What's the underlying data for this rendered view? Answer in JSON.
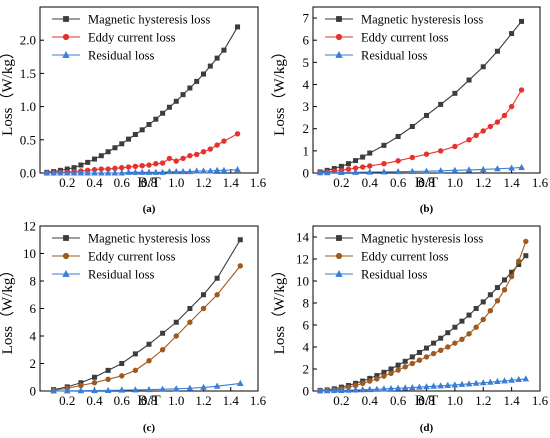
{
  "chart_data": [
    {
      "type": "line",
      "panel_label": "(a)",
      "xlabel": "B/T",
      "ylabel": "Loss（W/kg）",
      "xlim": [
        0,
        1.6
      ],
      "ylim": [
        0,
        2.5
      ],
      "xticks": [
        0.2,
        0.4,
        0.6,
        0.8,
        1.0,
        1.2,
        1.4,
        1.6
      ],
      "xtick_labels": [
        "0.2",
        "0.4",
        "0.6",
        "0.8",
        "1.0",
        "1.2",
        "1.4",
        "1.6"
      ],
      "yticks": [
        0.0,
        0.5,
        1.0,
        1.5,
        2.0
      ],
      "ytick_labels": [
        "0.0",
        "0.5",
        "1.0",
        "1.5",
        "2.0"
      ],
      "legend": "top-left",
      "grid": false,
      "series": [
        {
          "name": "Magnetic hysteresis loss",
          "color": "#3c3c3c",
          "marker": "square",
          "x": [
            0.05,
            0.1,
            0.15,
            0.2,
            0.25,
            0.3,
            0.35,
            0.4,
            0.45,
            0.5,
            0.55,
            0.6,
            0.65,
            0.7,
            0.75,
            0.8,
            0.85,
            0.9,
            0.95,
            1.0,
            1.05,
            1.1,
            1.15,
            1.2,
            1.25,
            1.3,
            1.35,
            1.45
          ],
          "values": [
            0.01,
            0.02,
            0.04,
            0.06,
            0.08,
            0.12,
            0.16,
            0.21,
            0.26,
            0.32,
            0.38,
            0.44,
            0.51,
            0.58,
            0.65,
            0.73,
            0.81,
            0.9,
            0.99,
            1.08,
            1.18,
            1.28,
            1.38,
            1.49,
            1.61,
            1.73,
            1.85,
            2.2
          ]
        },
        {
          "name": "Eddy current loss",
          "color": "#e8312a",
          "marker": "circle",
          "x": [
            0.05,
            0.1,
            0.15,
            0.2,
            0.25,
            0.3,
            0.35,
            0.4,
            0.45,
            0.5,
            0.55,
            0.6,
            0.65,
            0.7,
            0.75,
            0.8,
            0.85,
            0.9,
            0.95,
            1.0,
            1.05,
            1.1,
            1.15,
            1.2,
            1.25,
            1.3,
            1.35,
            1.45
          ],
          "values": [
            0.0,
            0.0,
            0.01,
            0.01,
            0.02,
            0.03,
            0.04,
            0.05,
            0.06,
            0.06,
            0.07,
            0.08,
            0.09,
            0.1,
            0.11,
            0.12,
            0.14,
            0.15,
            0.22,
            0.18,
            0.22,
            0.26,
            0.28,
            0.32,
            0.36,
            0.42,
            0.48,
            0.59
          ]
        },
        {
          "name": "Residual loss",
          "color": "#3a7ed8",
          "marker": "triangle",
          "x": [
            0.05,
            0.1,
            0.15,
            0.2,
            0.25,
            0.3,
            0.35,
            0.4,
            0.45,
            0.5,
            0.55,
            0.6,
            0.65,
            0.7,
            0.75,
            0.8,
            0.85,
            0.9,
            0.95,
            1.0,
            1.05,
            1.1,
            1.15,
            1.2,
            1.25,
            1.3,
            1.35,
            1.45
          ],
          "values": [
            0.0,
            0.0,
            0.0,
            0.0,
            0.0,
            0.0,
            0.0,
            0.0,
            0.0,
            0.0,
            0.0,
            0.0,
            0.01,
            0.01,
            0.01,
            0.01,
            0.01,
            0.01,
            0.02,
            0.02,
            0.02,
            0.02,
            0.03,
            0.03,
            0.03,
            0.04,
            0.04,
            0.05
          ]
        }
      ]
    },
    {
      "type": "line",
      "panel_label": "(b)",
      "xlabel": "B/T",
      "ylabel": "Loss（W/kg）",
      "xlim": [
        0,
        1.6
      ],
      "ylim": [
        0,
        7.5
      ],
      "xticks": [
        0.2,
        0.4,
        0.6,
        0.8,
        1.0,
        1.2,
        1.4,
        1.6
      ],
      "xtick_labels": [
        "0.2",
        "0.4",
        "0.6",
        "0.8",
        "1.0",
        "1.2",
        "1.4",
        "1.6"
      ],
      "yticks": [
        0,
        1,
        2,
        3,
        4,
        5,
        6,
        7
      ],
      "ytick_labels": [
        "0",
        "1",
        "2",
        "3",
        "4",
        "5",
        "6",
        "7"
      ],
      "legend": "top-left",
      "grid": false,
      "series": [
        {
          "name": "Magnetic hysteresis loss",
          "color": "#3c3c3c",
          "marker": "square",
          "x": [
            0.05,
            0.1,
            0.15,
            0.2,
            0.25,
            0.3,
            0.35,
            0.4,
            0.5,
            0.6,
            0.7,
            0.8,
            0.9,
            1.0,
            1.1,
            1.2,
            1.3,
            1.4,
            1.47
          ],
          "values": [
            0.05,
            0.12,
            0.2,
            0.3,
            0.42,
            0.56,
            0.72,
            0.9,
            1.25,
            1.65,
            2.1,
            2.6,
            3.1,
            3.6,
            4.2,
            4.8,
            5.5,
            6.3,
            6.85
          ]
        },
        {
          "name": "Eddy current loss",
          "color": "#e8312a",
          "marker": "circle",
          "x": [
            0.05,
            0.1,
            0.15,
            0.2,
            0.25,
            0.3,
            0.35,
            0.4,
            0.5,
            0.6,
            0.7,
            0.8,
            0.9,
            1.0,
            1.1,
            1.15,
            1.2,
            1.25,
            1.3,
            1.35,
            1.4,
            1.47
          ],
          "values": [
            0.02,
            0.05,
            0.08,
            0.12,
            0.17,
            0.22,
            0.27,
            0.32,
            0.42,
            0.55,
            0.7,
            0.85,
            1.0,
            1.2,
            1.5,
            1.7,
            1.9,
            2.1,
            2.3,
            2.6,
            3.0,
            3.75
          ]
        },
        {
          "name": "Residual loss",
          "color": "#3a7ed8",
          "marker": "triangle",
          "x": [
            0.05,
            0.1,
            0.2,
            0.3,
            0.4,
            0.5,
            0.6,
            0.7,
            0.8,
            0.9,
            1.0,
            1.1,
            1.2,
            1.3,
            1.4,
            1.47
          ],
          "values": [
            0.01,
            0.01,
            0.02,
            0.03,
            0.04,
            0.05,
            0.06,
            0.07,
            0.08,
            0.1,
            0.12,
            0.14,
            0.16,
            0.19,
            0.22,
            0.25
          ]
        }
      ]
    },
    {
      "type": "line",
      "panel_label": "(c)",
      "xlabel": "B/T",
      "ylabel": "Loss（W/kg）",
      "xlim": [
        0,
        1.6
      ],
      "ylim": [
        0,
        12
      ],
      "xticks": [
        0.2,
        0.4,
        0.6,
        0.8,
        1.0,
        1.2,
        1.4,
        1.6
      ],
      "xtick_labels": [
        "0.2",
        "0.4",
        "0.6",
        "0.8",
        "1.0",
        "1.2",
        "1.4",
        "1.6"
      ],
      "yticks": [
        0,
        2,
        4,
        6,
        8,
        10,
        12
      ],
      "ytick_labels": [
        "0",
        "2",
        "4",
        "6",
        "8",
        "10",
        "12"
      ],
      "legend": "top-left",
      "grid": false,
      "series": [
        {
          "name": "Magnetic hysteresis loss",
          "color": "#3c3c3c",
          "marker": "square",
          "x": [
            0.1,
            0.2,
            0.3,
            0.4,
            0.5,
            0.6,
            0.7,
            0.8,
            0.9,
            1.0,
            1.1,
            1.2,
            1.3,
            1.47
          ],
          "values": [
            0.1,
            0.3,
            0.6,
            1.0,
            1.5,
            2.0,
            2.7,
            3.4,
            4.2,
            5.0,
            6.0,
            7.0,
            8.2,
            11.0
          ]
        },
        {
          "name": "Eddy current loss",
          "color": "#a05a1e",
          "marker": "circle",
          "x": [
            0.1,
            0.2,
            0.3,
            0.4,
            0.5,
            0.6,
            0.7,
            0.8,
            0.9,
            1.0,
            1.1,
            1.2,
            1.3,
            1.47
          ],
          "values": [
            0.05,
            0.2,
            0.4,
            0.6,
            0.85,
            1.1,
            1.5,
            2.2,
            3.0,
            4.0,
            5.0,
            6.0,
            7.0,
            9.1
          ]
        },
        {
          "name": "Residual loss",
          "color": "#3a7ed8",
          "marker": "triangle",
          "x": [
            0.1,
            0.2,
            0.3,
            0.4,
            0.5,
            0.6,
            0.7,
            0.8,
            0.9,
            1.0,
            1.1,
            1.2,
            1.3,
            1.47
          ],
          "values": [
            0.0,
            0.01,
            0.02,
            0.03,
            0.04,
            0.06,
            0.08,
            0.1,
            0.13,
            0.16,
            0.2,
            0.26,
            0.35,
            0.55
          ]
        }
      ]
    },
    {
      "type": "line",
      "panel_label": "(d)",
      "xlabel": "B/T",
      "ylabel": "Loss（W/kg）",
      "xlim": [
        0,
        1.6
      ],
      "ylim": [
        0,
        15
      ],
      "xticks": [
        0.2,
        0.4,
        0.6,
        0.8,
        1.0,
        1.2,
        1.4,
        1.6
      ],
      "xtick_labels": [
        "0.2",
        "0.4",
        "0.6",
        "0.8",
        "1.0",
        "1.2",
        "1.4",
        "1.6"
      ],
      "yticks": [
        0,
        2,
        4,
        6,
        8,
        10,
        12,
        14
      ],
      "ytick_labels": [
        "0",
        "2",
        "4",
        "6",
        "8",
        "10",
        "12",
        "14"
      ],
      "legend": "top-left",
      "grid": false,
      "series": [
        {
          "name": "Magnetic hysteresis loss",
          "color": "#3c3c3c",
          "marker": "square",
          "x": [
            0.05,
            0.1,
            0.15,
            0.2,
            0.25,
            0.3,
            0.35,
            0.4,
            0.45,
            0.5,
            0.55,
            0.6,
            0.65,
            0.7,
            0.75,
            0.8,
            0.85,
            0.9,
            0.95,
            1.0,
            1.05,
            1.1,
            1.15,
            1.2,
            1.25,
            1.3,
            1.35,
            1.4,
            1.45,
            1.5
          ],
          "values": [
            0.05,
            0.1,
            0.2,
            0.35,
            0.5,
            0.7,
            0.9,
            1.15,
            1.4,
            1.7,
            2.0,
            2.35,
            2.7,
            3.1,
            3.5,
            3.9,
            4.35,
            4.8,
            5.3,
            5.8,
            6.35,
            6.9,
            7.5,
            8.1,
            8.75,
            9.4,
            10.1,
            10.8,
            11.5,
            12.3
          ]
        },
        {
          "name": "Eddy current loss",
          "color": "#a05a1e",
          "marker": "circle",
          "x": [
            0.05,
            0.1,
            0.15,
            0.2,
            0.25,
            0.3,
            0.35,
            0.4,
            0.45,
            0.5,
            0.55,
            0.6,
            0.65,
            0.7,
            0.75,
            0.8,
            0.85,
            0.9,
            0.95,
            1.0,
            1.05,
            1.1,
            1.15,
            1.2,
            1.25,
            1.3,
            1.35,
            1.4,
            1.45,
            1.5
          ],
          "values": [
            0.02,
            0.05,
            0.1,
            0.2,
            0.35,
            0.5,
            0.7,
            0.9,
            1.1,
            1.35,
            1.6,
            1.9,
            2.2,
            2.5,
            2.8,
            3.1,
            3.4,
            3.7,
            4.0,
            4.35,
            4.7,
            5.2,
            5.8,
            6.5,
            7.3,
            8.2,
            9.2,
            10.4,
            11.8,
            13.6
          ]
        },
        {
          "name": "Residual loss",
          "color": "#3a7ed8",
          "marker": "triangle",
          "x": [
            0.05,
            0.1,
            0.15,
            0.2,
            0.25,
            0.3,
            0.35,
            0.4,
            0.45,
            0.5,
            0.55,
            0.6,
            0.65,
            0.7,
            0.75,
            0.8,
            0.85,
            0.9,
            0.95,
            1.0,
            1.05,
            1.1,
            1.15,
            1.2,
            1.25,
            1.3,
            1.35,
            1.4,
            1.45,
            1.5
          ],
          "values": [
            0.01,
            0.02,
            0.03,
            0.05,
            0.07,
            0.09,
            0.11,
            0.13,
            0.16,
            0.19,
            0.22,
            0.25,
            0.28,
            0.31,
            0.35,
            0.39,
            0.43,
            0.47,
            0.51,
            0.55,
            0.6,
            0.65,
            0.7,
            0.75,
            0.8,
            0.86,
            0.92,
            0.98,
            1.04,
            1.1
          ]
        }
      ]
    }
  ]
}
